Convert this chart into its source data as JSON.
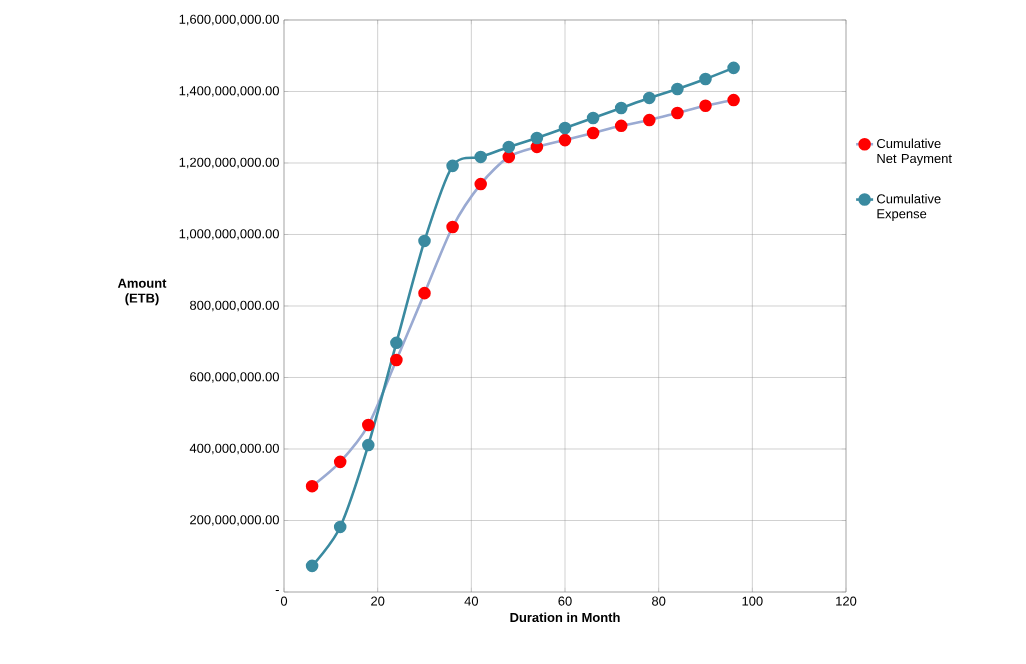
{
  "chart_data": {
    "type": "line",
    "xlabel": "Duration in Month",
    "ylabel": "Amount (ETB)",
    "x": [
      6,
      12,
      18,
      24,
      30,
      36,
      42,
      48,
      54,
      60,
      66,
      72,
      78,
      84,
      90,
      96
    ],
    "series": [
      {
        "name": "Cumulative Net Payment",
        "color": "#9aaad2",
        "colors": [
          "#ff0000",
          "#ff0000",
          "#ff0000",
          "#ff0000",
          "#ff0000",
          "#ff0000",
          "#ff0000",
          "#ff0000",
          "#ff0000",
          "#ff0000",
          "#ff0000",
          "#ff0000",
          "#ff0000",
          "#ff0000",
          "#ff0000",
          "#ff0000"
        ],
        "values": [
          296000000,
          364000000,
          467000000,
          649000000,
          836000000,
          1021000000,
          1141000000,
          1217000000,
          1245000000,
          1264000000,
          1284000000,
          1304000000,
          1320000000,
          1340000000,
          1360000000,
          1376000000
        ]
      },
      {
        "name": "Cumulative Expense",
        "color": "#3a8aa0",
        "values": [
          73000000,
          182000000,
          411000000,
          697000000,
          982000000,
          1192000000,
          1217000000,
          1245000000,
          1270000000,
          1298000000,
          1326000000,
          1354000000,
          1382000000,
          1407000000,
          1435000000,
          1466000000
        ]
      }
    ],
    "xlim": [
      0,
      120
    ],
    "xticks": [
      0,
      20,
      40,
      60,
      80,
      100,
      120
    ],
    "ylim": [
      0,
      1600000000
    ],
    "yticks": [
      {
        "value": 0,
        "label": "-"
      },
      {
        "value": 200000000,
        "label": "200,000,000.00"
      },
      {
        "value": 400000000,
        "label": "400,000,000.00"
      },
      {
        "value": 600000000,
        "label": "600,000,000.00"
      },
      {
        "value": 800000000,
        "label": "800,000,000.00"
      },
      {
        "value": 1000000000,
        "label": "1,000,000,000.00"
      },
      {
        "value": 1200000000,
        "label": "1,200,000,000.00"
      },
      {
        "value": 1400000000,
        "label": "1,400,000,000.00"
      },
      {
        "value": 1600000000,
        "label": "1,600,000,000.00"
      }
    ],
    "grid": true,
    "legend": "right",
    "marker": "circle",
    "line_style": "solid"
  }
}
